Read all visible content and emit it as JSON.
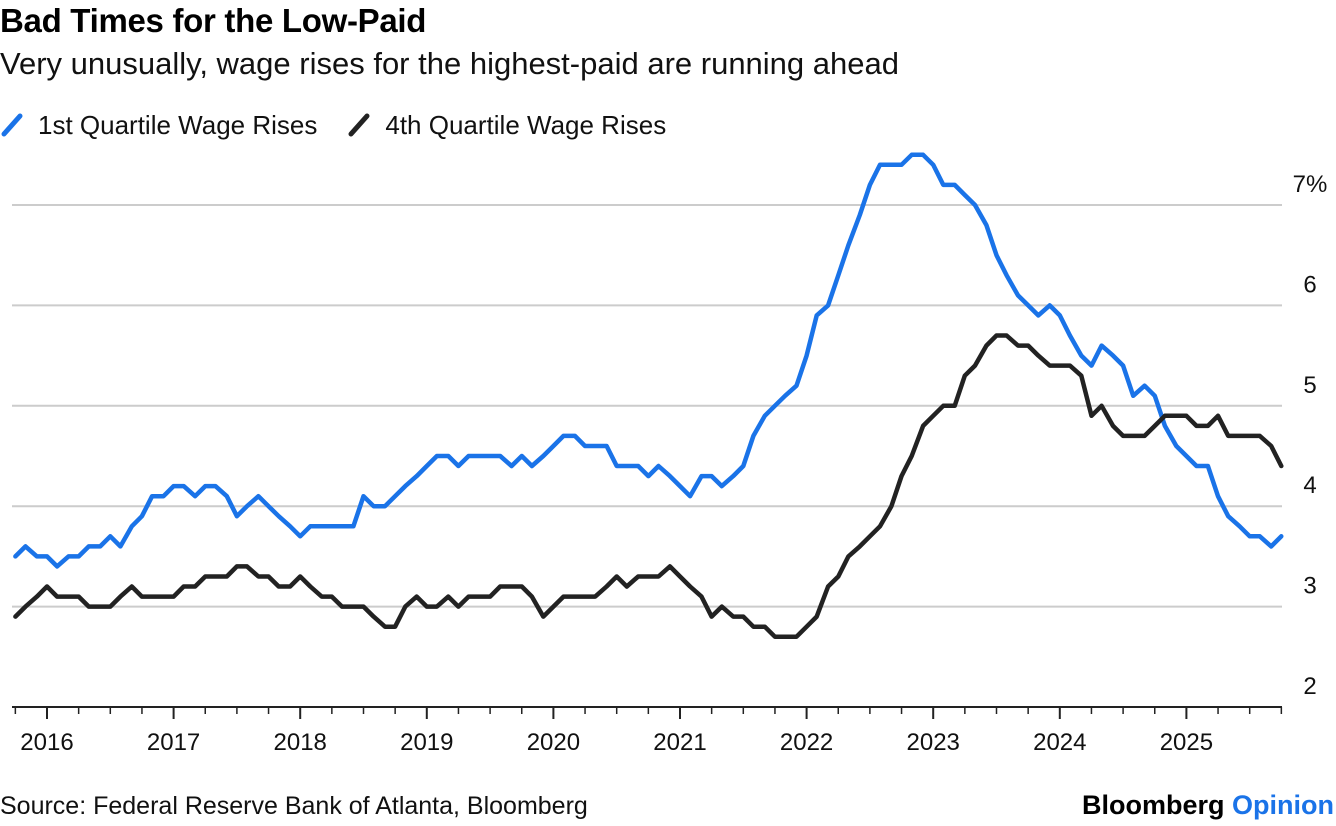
{
  "header": {
    "title": "Bad Times for the Low-Paid",
    "subtitle": "Very unusually, wage rises for the highest-paid are running ahead"
  },
  "footer": {
    "source": "Source: Federal Reserve Bank of Atlanta, Bloomberg",
    "brand_primary": "Bloomberg",
    "brand_secondary": "Opinion"
  },
  "colors": {
    "q1": "#1a73e8",
    "q4": "#222222",
    "grid": "#cccccc",
    "brand_accent": "#1a73e8"
  },
  "chart_data": {
    "type": "line",
    "title": "Bad Times for the Low-Paid",
    "subtitle": "Very unusually, wage rises for the highest-paid are running ahead",
    "xlabel": "",
    "ylabel": "",
    "ylim": [
      2,
      7.5
    ],
    "xlim": [
      2015.67,
      2025.92
    ],
    "y_ticks": [
      2,
      3,
      4,
      5,
      6,
      7
    ],
    "y_tick_labels": [
      "2",
      "3",
      "4",
      "5",
      "6",
      "7%"
    ],
    "x_ticks": [
      2016,
      2017,
      2018,
      2019,
      2020,
      2021,
      2022,
      2023,
      2024,
      2025
    ],
    "x_tick_labels": [
      "2016",
      "2017",
      "2018",
      "2019",
      "2020",
      "2021",
      "2022",
      "2023",
      "2024",
      "2025"
    ],
    "grid": true,
    "legend_position": "top-left",
    "series": [
      {
        "name": "1st Quartile Wage Rises",
        "color": "#1a73e8",
        "points": [
          [
            2015.75,
            3.5
          ],
          [
            2015.83,
            3.6
          ],
          [
            2015.92,
            3.5
          ],
          [
            2016.0,
            3.5
          ],
          [
            2016.08,
            3.4
          ],
          [
            2016.17,
            3.5
          ],
          [
            2016.25,
            3.5
          ],
          [
            2016.33,
            3.6
          ],
          [
            2016.42,
            3.6
          ],
          [
            2016.5,
            3.7
          ],
          [
            2016.58,
            3.6
          ],
          [
            2016.67,
            3.8
          ],
          [
            2016.75,
            3.9
          ],
          [
            2016.83,
            4.1
          ],
          [
            2016.92,
            4.1
          ],
          [
            2017.0,
            4.2
          ],
          [
            2017.08,
            4.2
          ],
          [
            2017.17,
            4.1
          ],
          [
            2017.25,
            4.2
          ],
          [
            2017.33,
            4.2
          ],
          [
            2017.42,
            4.1
          ],
          [
            2017.5,
            3.9
          ],
          [
            2017.58,
            4.0
          ],
          [
            2017.67,
            4.1
          ],
          [
            2017.75,
            4.0
          ],
          [
            2017.83,
            3.9
          ],
          [
            2017.92,
            3.8
          ],
          [
            2018.0,
            3.7
          ],
          [
            2018.08,
            3.8
          ],
          [
            2018.17,
            3.8
          ],
          [
            2018.25,
            3.8
          ],
          [
            2018.33,
            3.8
          ],
          [
            2018.42,
            3.8
          ],
          [
            2018.5,
            4.1
          ],
          [
            2018.58,
            4.0
          ],
          [
            2018.67,
            4.0
          ],
          [
            2018.75,
            4.1
          ],
          [
            2018.83,
            4.2
          ],
          [
            2018.92,
            4.3
          ],
          [
            2019.0,
            4.4
          ],
          [
            2019.08,
            4.5
          ],
          [
            2019.17,
            4.5
          ],
          [
            2019.25,
            4.4
          ],
          [
            2019.33,
            4.5
          ],
          [
            2019.42,
            4.5
          ],
          [
            2019.5,
            4.5
          ],
          [
            2019.58,
            4.5
          ],
          [
            2019.67,
            4.4
          ],
          [
            2019.75,
            4.5
          ],
          [
            2019.83,
            4.4
          ],
          [
            2019.92,
            4.5
          ],
          [
            2020.0,
            4.6
          ],
          [
            2020.08,
            4.7
          ],
          [
            2020.17,
            4.7
          ],
          [
            2020.25,
            4.6
          ],
          [
            2020.33,
            4.6
          ],
          [
            2020.42,
            4.6
          ],
          [
            2020.5,
            4.4
          ],
          [
            2020.58,
            4.4
          ],
          [
            2020.67,
            4.4
          ],
          [
            2020.75,
            4.3
          ],
          [
            2020.83,
            4.4
          ],
          [
            2020.92,
            4.3
          ],
          [
            2021.0,
            4.2
          ],
          [
            2021.08,
            4.1
          ],
          [
            2021.17,
            4.3
          ],
          [
            2021.25,
            4.3
          ],
          [
            2021.33,
            4.2
          ],
          [
            2021.42,
            4.3
          ],
          [
            2021.5,
            4.4
          ],
          [
            2021.58,
            4.7
          ],
          [
            2021.67,
            4.9
          ],
          [
            2021.75,
            5.0
          ],
          [
            2021.83,
            5.1
          ],
          [
            2021.92,
            5.2
          ],
          [
            2022.0,
            5.5
          ],
          [
            2022.08,
            5.9
          ],
          [
            2022.17,
            6.0
          ],
          [
            2022.25,
            6.3
          ],
          [
            2022.33,
            6.6
          ],
          [
            2022.42,
            6.9
          ],
          [
            2022.5,
            7.2
          ],
          [
            2022.58,
            7.4
          ],
          [
            2022.67,
            7.4
          ],
          [
            2022.75,
            7.4
          ],
          [
            2022.83,
            7.5
          ],
          [
            2022.92,
            7.5
          ],
          [
            2023.0,
            7.4
          ],
          [
            2023.08,
            7.2
          ],
          [
            2023.17,
            7.2
          ],
          [
            2023.25,
            7.1
          ],
          [
            2023.33,
            7.0
          ],
          [
            2023.42,
            6.8
          ],
          [
            2023.5,
            6.5
          ],
          [
            2023.58,
            6.3
          ],
          [
            2023.67,
            6.1
          ],
          [
            2023.75,
            6.0
          ],
          [
            2023.83,
            5.9
          ],
          [
            2023.92,
            6.0
          ],
          [
            2024.0,
            5.9
          ],
          [
            2024.08,
            5.7
          ],
          [
            2024.17,
            5.5
          ],
          [
            2024.25,
            5.4
          ],
          [
            2024.33,
            5.6
          ],
          [
            2024.42,
            5.5
          ],
          [
            2024.5,
            5.4
          ],
          [
            2024.58,
            5.1
          ],
          [
            2024.67,
            5.2
          ],
          [
            2024.75,
            5.1
          ],
          [
            2024.83,
            4.8
          ],
          [
            2024.92,
            4.6
          ],
          [
            2025.0,
            4.5
          ],
          [
            2025.08,
            4.4
          ],
          [
            2025.17,
            4.4
          ],
          [
            2025.25,
            4.1
          ],
          [
            2025.33,
            3.9
          ],
          [
            2025.42,
            3.8
          ],
          [
            2025.5,
            3.7
          ],
          [
            2025.58,
            3.7
          ],
          [
            2025.67,
            3.6
          ],
          [
            2025.75,
            3.7
          ]
        ]
      },
      {
        "name": "4th Quartile Wage Rises",
        "color": "#222222",
        "points": [
          [
            2015.75,
            2.9
          ],
          [
            2015.83,
            3.0
          ],
          [
            2015.92,
            3.1
          ],
          [
            2016.0,
            3.2
          ],
          [
            2016.08,
            3.1
          ],
          [
            2016.17,
            3.1
          ],
          [
            2016.25,
            3.1
          ],
          [
            2016.33,
            3.0
          ],
          [
            2016.42,
            3.0
          ],
          [
            2016.5,
            3.0
          ],
          [
            2016.58,
            3.1
          ],
          [
            2016.67,
            3.2
          ],
          [
            2016.75,
            3.1
          ],
          [
            2016.83,
            3.1
          ],
          [
            2016.92,
            3.1
          ],
          [
            2017.0,
            3.1
          ],
          [
            2017.08,
            3.2
          ],
          [
            2017.17,
            3.2
          ],
          [
            2017.25,
            3.3
          ],
          [
            2017.33,
            3.3
          ],
          [
            2017.42,
            3.3
          ],
          [
            2017.5,
            3.4
          ],
          [
            2017.58,
            3.4
          ],
          [
            2017.67,
            3.3
          ],
          [
            2017.75,
            3.3
          ],
          [
            2017.83,
            3.2
          ],
          [
            2017.92,
            3.2
          ],
          [
            2018.0,
            3.3
          ],
          [
            2018.08,
            3.2
          ],
          [
            2018.17,
            3.1
          ],
          [
            2018.25,
            3.1
          ],
          [
            2018.33,
            3.0
          ],
          [
            2018.42,
            3.0
          ],
          [
            2018.5,
            3.0
          ],
          [
            2018.58,
            2.9
          ],
          [
            2018.67,
            2.8
          ],
          [
            2018.75,
            2.8
          ],
          [
            2018.83,
            3.0
          ],
          [
            2018.92,
            3.1
          ],
          [
            2019.0,
            3.0
          ],
          [
            2019.08,
            3.0
          ],
          [
            2019.17,
            3.1
          ],
          [
            2019.25,
            3.0
          ],
          [
            2019.33,
            3.1
          ],
          [
            2019.42,
            3.1
          ],
          [
            2019.5,
            3.1
          ],
          [
            2019.58,
            3.2
          ],
          [
            2019.67,
            3.2
          ],
          [
            2019.75,
            3.2
          ],
          [
            2019.83,
            3.1
          ],
          [
            2019.92,
            2.9
          ],
          [
            2020.0,
            3.0
          ],
          [
            2020.08,
            3.1
          ],
          [
            2020.17,
            3.1
          ],
          [
            2020.25,
            3.1
          ],
          [
            2020.33,
            3.1
          ],
          [
            2020.42,
            3.2
          ],
          [
            2020.5,
            3.3
          ],
          [
            2020.58,
            3.2
          ],
          [
            2020.67,
            3.3
          ],
          [
            2020.75,
            3.3
          ],
          [
            2020.83,
            3.3
          ],
          [
            2020.92,
            3.4
          ],
          [
            2021.0,
            3.3
          ],
          [
            2021.08,
            3.2
          ],
          [
            2021.17,
            3.1
          ],
          [
            2021.25,
            2.9
          ],
          [
            2021.33,
            3.0
          ],
          [
            2021.42,
            2.9
          ],
          [
            2021.5,
            2.9
          ],
          [
            2021.58,
            2.8
          ],
          [
            2021.67,
            2.8
          ],
          [
            2021.75,
            2.7
          ],
          [
            2021.83,
            2.7
          ],
          [
            2021.92,
            2.7
          ],
          [
            2022.0,
            2.8
          ],
          [
            2022.08,
            2.9
          ],
          [
            2022.17,
            3.2
          ],
          [
            2022.25,
            3.3
          ],
          [
            2022.33,
            3.5
          ],
          [
            2022.42,
            3.6
          ],
          [
            2022.5,
            3.7
          ],
          [
            2022.58,
            3.8
          ],
          [
            2022.67,
            4.0
          ],
          [
            2022.75,
            4.3
          ],
          [
            2022.83,
            4.5
          ],
          [
            2022.92,
            4.8
          ],
          [
            2023.0,
            4.9
          ],
          [
            2023.08,
            5.0
          ],
          [
            2023.17,
            5.0
          ],
          [
            2023.25,
            5.3
          ],
          [
            2023.33,
            5.4
          ],
          [
            2023.42,
            5.6
          ],
          [
            2023.5,
            5.7
          ],
          [
            2023.58,
            5.7
          ],
          [
            2023.67,
            5.6
          ],
          [
            2023.75,
            5.6
          ],
          [
            2023.83,
            5.5
          ],
          [
            2023.92,
            5.4
          ],
          [
            2024.0,
            5.4
          ],
          [
            2024.08,
            5.4
          ],
          [
            2024.17,
            5.3
          ],
          [
            2024.25,
            4.9
          ],
          [
            2024.33,
            5.0
          ],
          [
            2024.42,
            4.8
          ],
          [
            2024.5,
            4.7
          ],
          [
            2024.58,
            4.7
          ],
          [
            2024.67,
            4.7
          ],
          [
            2024.75,
            4.8
          ],
          [
            2024.83,
            4.9
          ],
          [
            2024.92,
            4.9
          ],
          [
            2025.0,
            4.9
          ],
          [
            2025.08,
            4.8
          ],
          [
            2025.17,
            4.8
          ],
          [
            2025.25,
            4.9
          ],
          [
            2025.33,
            4.7
          ],
          [
            2025.42,
            4.7
          ],
          [
            2025.5,
            4.7
          ],
          [
            2025.58,
            4.7
          ],
          [
            2025.67,
            4.6
          ],
          [
            2025.75,
            4.4
          ]
        ]
      }
    ]
  }
}
